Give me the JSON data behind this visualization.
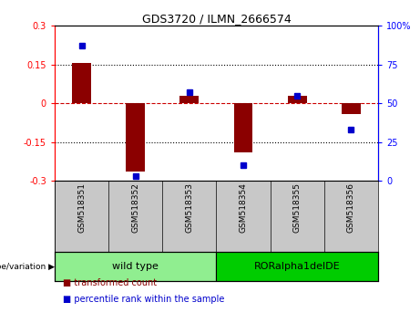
{
  "title": "GDS3720 / ILMN_2666574",
  "samples": [
    "GSM518351",
    "GSM518352",
    "GSM518353",
    "GSM518354",
    "GSM518355",
    "GSM518356"
  ],
  "transformed_count": [
    0.155,
    -0.265,
    0.03,
    -0.19,
    0.03,
    -0.04
  ],
  "percentile_rank": [
    87,
    3,
    57,
    10,
    55,
    33
  ],
  "ylim_left": [
    -0.3,
    0.3
  ],
  "ylim_right": [
    0,
    100
  ],
  "yticks_left": [
    -0.3,
    -0.15,
    0,
    0.15,
    0.3
  ],
  "yticks_right": [
    0,
    25,
    50,
    75,
    100
  ],
  "bar_color": "#8B0000",
  "dot_color": "#0000CC",
  "zero_line_color": "#CC0000",
  "grid_color": "#000000",
  "groups": [
    {
      "label": "wild type",
      "indices": [
        0,
        1,
        2
      ],
      "color": "#90EE90"
    },
    {
      "label": "RORalpha1delDE",
      "indices": [
        3,
        4,
        5
      ],
      "color": "#00CC00"
    }
  ],
  "group_label": "genotype/variation",
  "legend_red": "transformed count",
  "legend_blue": "percentile rank within the sample",
  "bar_width": 0.35
}
